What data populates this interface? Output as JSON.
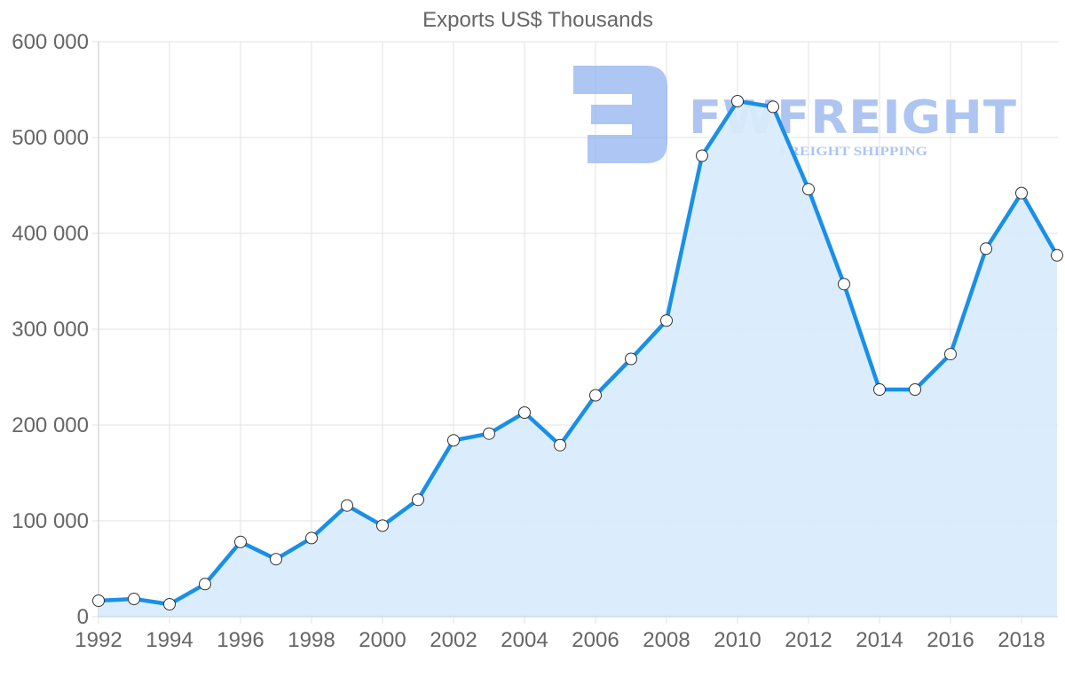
{
  "chart_data": {
    "type": "area",
    "title": "Exports US$ Thousands",
    "xlabel": "",
    "ylabel": "",
    "x": [
      1992,
      1993,
      1994,
      1995,
      1996,
      1997,
      1998,
      1999,
      2000,
      2001,
      2002,
      2003,
      2004,
      2005,
      2006,
      2007,
      2008,
      2009,
      2010,
      2011,
      2012,
      2013,
      2014,
      2015,
      2016,
      2017,
      2018,
      2019
    ],
    "series": [
      {
        "name": "Exports US$ Thousands",
        "values": [
          16700,
          18500,
          13000,
          34000,
          78000,
          60000,
          82000,
          116000,
          95000,
          122000,
          184000,
          191000,
          213000,
          179000,
          231000,
          269000,
          309000,
          481000,
          538000,
          532000,
          446000,
          347000,
          237000,
          237000,
          274000,
          384000,
          442000,
          377000
        ],
        "line_color": "#1a8fe8",
        "fill_color": "#d8ebfc",
        "marker_fill": "#ffffff",
        "marker_stroke": "#333333"
      }
    ],
    "ylim": [
      0,
      600000
    ],
    "yticks": [
      0,
      100000,
      200000,
      300000,
      400000,
      500000,
      600000
    ],
    "ytick_labels": [
      "0",
      "100 000",
      "200 000",
      "300 000",
      "400 000",
      "500 000",
      "600 000"
    ],
    "xticks": [
      1992,
      1994,
      1996,
      1998,
      2000,
      2002,
      2004,
      2006,
      2008,
      2010,
      2012,
      2014,
      2016,
      2018
    ],
    "xtick_labels": [
      "1992",
      "1994",
      "1996",
      "1998",
      "2000",
      "2002",
      "2004",
      "2006",
      "2008",
      "2010",
      "2012",
      "2014",
      "2016",
      "2018"
    ],
    "grid": true,
    "legend": "none"
  },
  "watermark": {
    "brand": "FWFREIGHT",
    "tagline": "FREIGHT SHIPPING"
  }
}
